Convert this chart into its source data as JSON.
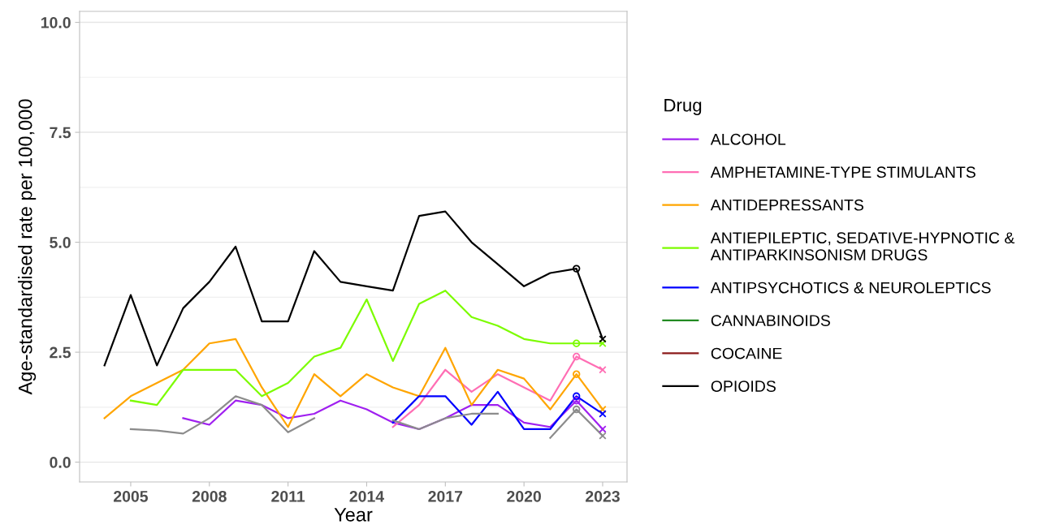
{
  "chart_data": {
    "type": "line",
    "xlabel": "Year",
    "ylabel": "Age-standardised rate per 100,000",
    "legend_title": "Drug",
    "legend": "right",
    "grid": "y",
    "marker": "none",
    "line_style": "solid",
    "xlim": [
      2003.05,
      2023.93
    ],
    "xticks": [
      2005,
      2008,
      2011,
      2014,
      2017,
      2020,
      2023
    ],
    "ylim": [
      -0.45,
      10.25
    ],
    "yticks": [
      {
        "value": 0,
        "label": "0.0"
      },
      {
        "value": 2.5,
        "label": "2.5"
      },
      {
        "value": 5,
        "label": "5.0"
      },
      {
        "value": 7.5,
        "label": "7.5"
      },
      {
        "value": 10,
        "label": "10.0"
      }
    ],
    "x": [
      2004,
      2005,
      2006,
      2007,
      2008,
      2009,
      2010,
      2011,
      2012,
      2013,
      2014,
      2015,
      2016,
      2017,
      2018,
      2019,
      2020,
      2021,
      2022,
      2023
    ],
    "series": [
      {
        "name": "ALCOHOL",
        "color": "#a020f0",
        "values": [
          null,
          null,
          null,
          1.0,
          0.85,
          1.4,
          1.3,
          1.0,
          1.1,
          1.4,
          1.2,
          0.9,
          0.75,
          1.0,
          1.3,
          1.3,
          0.9,
          0.8,
          1.4,
          0.75
        ]
      },
      {
        "name": "AMPHETAMINE-TYPE STIMULANTS",
        "color": "#ff6eb4",
        "values": [
          null,
          null,
          null,
          null,
          null,
          null,
          null,
          null,
          null,
          null,
          null,
          0.8,
          1.3,
          2.1,
          1.6,
          2.0,
          1.7,
          1.4,
          2.4,
          2.1
        ]
      },
      {
        "name": "ANTIDEPRESSANTS",
        "color": "#ffa500",
        "values": [
          1.0,
          1.5,
          1.8,
          2.1,
          2.7,
          2.8,
          1.7,
          0.8,
          2.0,
          1.5,
          2.0,
          1.7,
          1.5,
          2.6,
          1.3,
          2.1,
          1.9,
          1.2,
          2.0,
          1.2
        ]
      },
      {
        "name": "ANTIEPILEPTIC, SEDATIVE-HYPNOTIC &\nANTIPARKINSONISM DRUGS",
        "color": "#7cfc00",
        "values": [
          null,
          1.4,
          1.3,
          2.1,
          2.1,
          2.1,
          1.5,
          1.8,
          2.4,
          2.6,
          3.7,
          2.3,
          3.6,
          3.9,
          3.3,
          3.1,
          2.8,
          2.7,
          2.7,
          2.7
        ]
      },
      {
        "name": "ANTIPSYCHOTICS & NEUROLEPTICS",
        "color": "#0000ff",
        "values": [
          null,
          null,
          null,
          null,
          null,
          null,
          null,
          null,
          null,
          null,
          null,
          0.9,
          1.5,
          1.5,
          0.85,
          1.6,
          0.75,
          0.75,
          1.5,
          1.1
        ]
      },
      {
        "name": "CANNABINOIDS",
        "color": "#228b22",
        "values": [
          null,
          null,
          null,
          null,
          null,
          null,
          null,
          null,
          null,
          null,
          null,
          null,
          null,
          null,
          null,
          null,
          null,
          null,
          null,
          null
        ]
      },
      {
        "name": "COCAINE",
        "color": "#8b1a1a",
        "values": [
          null,
          null,
          null,
          null,
          null,
          null,
          null,
          null,
          null,
          null,
          null,
          null,
          null,
          null,
          null,
          null,
          null,
          null,
          null,
          null
        ]
      },
      {
        "name": "OPIOIDS",
        "color": "#000000",
        "values": [
          2.2,
          3.8,
          2.2,
          3.5,
          4.1,
          4.9,
          3.2,
          3.2,
          4.8,
          4.1,
          4.0,
          3.9,
          5.6,
          5.7,
          5.0,
          4.5,
          4.0,
          4.3,
          4.4,
          2.8
        ]
      },
      {
        "color": "#8c8c8c",
        "values": [
          null,
          0.75,
          0.72,
          0.65,
          1.0,
          1.5,
          1.3,
          0.68,
          1.0,
          null,
          null,
          0.95,
          0.75,
          1.0,
          1.1,
          1.1,
          null,
          0.55,
          1.2,
          0.6
        ]
      },
      {
        "type": "scatter",
        "marker": "circle",
        "color": "#a020f0",
        "values": [
          null,
          null,
          null,
          null,
          null,
          null,
          null,
          null,
          null,
          null,
          null,
          null,
          null,
          null,
          null,
          null,
          null,
          null,
          1.4,
          null
        ]
      },
      {
        "type": "scatter",
        "marker": "cross",
        "color": "#a020f0",
        "values": [
          null,
          null,
          null,
          null,
          null,
          null,
          null,
          null,
          null,
          null,
          null,
          null,
          null,
          null,
          null,
          null,
          null,
          null,
          null,
          0.75
        ]
      },
      {
        "type": "scatter",
        "marker": "circle",
        "color": "#ff6eb4",
        "values": [
          null,
          null,
          null,
          null,
          null,
          null,
          null,
          null,
          null,
          null,
          null,
          null,
          null,
          null,
          null,
          null,
          null,
          null,
          2.4,
          null
        ]
      },
      {
        "type": "scatter",
        "marker": "cross",
        "color": "#ff6eb4",
        "values": [
          null,
          null,
          null,
          null,
          null,
          null,
          null,
          null,
          null,
          null,
          null,
          null,
          null,
          null,
          null,
          null,
          null,
          null,
          null,
          2.1
        ]
      },
      {
        "type": "scatter",
        "marker": "circle",
        "color": "#ffa500",
        "values": [
          null,
          null,
          null,
          null,
          null,
          null,
          null,
          null,
          null,
          null,
          null,
          null,
          null,
          null,
          null,
          null,
          null,
          null,
          2.0,
          null
        ]
      },
      {
        "type": "scatter",
        "marker": "cross",
        "color": "#ffa500",
        "values": [
          null,
          null,
          null,
          null,
          null,
          null,
          null,
          null,
          null,
          null,
          null,
          null,
          null,
          null,
          null,
          null,
          null,
          null,
          null,
          1.2
        ]
      },
      {
        "type": "scatter",
        "marker": "circle",
        "color": "#7cfc00",
        "values": [
          null,
          null,
          null,
          null,
          null,
          null,
          null,
          null,
          null,
          null,
          null,
          null,
          null,
          null,
          null,
          null,
          null,
          null,
          2.7,
          null
        ]
      },
      {
        "type": "scatter",
        "marker": "cross",
        "color": "#7cfc00",
        "values": [
          null,
          null,
          null,
          null,
          null,
          null,
          null,
          null,
          null,
          null,
          null,
          null,
          null,
          null,
          null,
          null,
          null,
          null,
          null,
          2.7
        ]
      },
      {
        "type": "scatter",
        "marker": "circle",
        "color": "#0000ff",
        "values": [
          null,
          null,
          null,
          null,
          null,
          null,
          null,
          null,
          null,
          null,
          null,
          null,
          null,
          null,
          null,
          null,
          null,
          null,
          1.5,
          null
        ]
      },
      {
        "type": "scatter",
        "marker": "cross",
        "color": "#0000ff",
        "values": [
          null,
          null,
          null,
          null,
          null,
          null,
          null,
          null,
          null,
          null,
          null,
          null,
          null,
          null,
          null,
          null,
          null,
          null,
          null,
          1.1
        ]
      },
      {
        "type": "scatter",
        "marker": "circle",
        "color": "#000000",
        "values": [
          null,
          null,
          null,
          null,
          null,
          null,
          null,
          null,
          null,
          null,
          null,
          null,
          null,
          null,
          null,
          null,
          null,
          null,
          4.4,
          null
        ]
      },
      {
        "type": "scatter",
        "marker": "cross",
        "color": "#000000",
        "values": [
          null,
          null,
          null,
          null,
          null,
          null,
          null,
          null,
          null,
          null,
          null,
          null,
          null,
          null,
          null,
          null,
          null,
          null,
          null,
          2.8
        ]
      },
      {
        "type": "scatter",
        "marker": "circle",
        "color": "#8c8c8c",
        "values": [
          null,
          null,
          null,
          null,
          null,
          null,
          null,
          null,
          null,
          null,
          null,
          null,
          null,
          null,
          null,
          null,
          null,
          null,
          1.2,
          null
        ]
      },
      {
        "type": "scatter",
        "marker": "cross",
        "color": "#8c8c8c",
        "values": [
          null,
          null,
          null,
          null,
          null,
          null,
          null,
          null,
          null,
          null,
          null,
          null,
          null,
          null,
          null,
          null,
          null,
          null,
          null,
          0.6
        ]
      }
    ]
  }
}
